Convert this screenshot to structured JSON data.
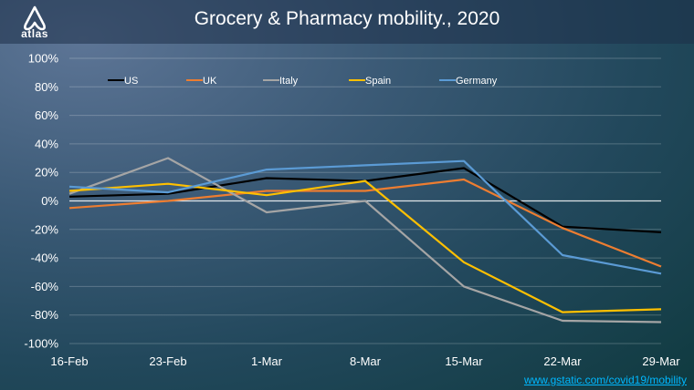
{
  "header": {
    "logo_text": "atlas",
    "title": "Grocery & Pharmacy mobility., 2020"
  },
  "source_link": "www.gstatic.com/covid19/mobility",
  "chart_data": {
    "type": "line",
    "title": "Grocery & Pharmacy mobility., 2020",
    "categories": [
      "16-Feb",
      "23-Feb",
      "1-Mar",
      "8-Mar",
      "15-Mar",
      "22-Mar",
      "29-Mar"
    ],
    "y_ticks": [
      "100%",
      "80%",
      "60%",
      "40%",
      "20%",
      "0%",
      "-20%",
      "-40%",
      "-60%",
      "-80%",
      "-100%"
    ],
    "ylim": [
      -100,
      100
    ],
    "grid": true,
    "legend_position": "top",
    "series": [
      {
        "name": "US",
        "color": "#000000",
        "values": [
          3,
          5,
          16,
          14,
          23,
          -18,
          -22
        ]
      },
      {
        "name": "UK",
        "color": "#ed7d31",
        "values": [
          -5,
          0,
          7,
          7,
          15,
          -19,
          -46
        ]
      },
      {
        "name": "Italy",
        "color": "#a5a5a5",
        "values": [
          5,
          30,
          -8,
          0,
          -60,
          -84,
          -85
        ]
      },
      {
        "name": "Spain",
        "color": "#ffc000",
        "values": [
          7,
          12,
          4,
          14,
          -43,
          -78,
          -76
        ]
      },
      {
        "name": "Germany",
        "color": "#5b9bd5",
        "values": [
          10,
          6,
          22,
          25,
          28,
          -38,
          -51
        ]
      }
    ]
  }
}
